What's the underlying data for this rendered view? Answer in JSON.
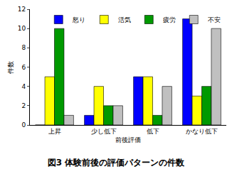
{
  "chart_data": {
    "type": "bar",
    "title": "図3 体験前後の評価パターンの件数",
    "x_label": "前後評価",
    "y_label": "件数",
    "categories": [
      "上昇",
      "少し低下",
      "低下",
      "かなり低下"
    ],
    "series": [
      {
        "name": "怒り",
        "color": "#0000FF",
        "values": [
          0,
          1,
          5,
          11
        ]
      },
      {
        "name": "活気",
        "color": "#FFFF00",
        "values": [
          5,
          4,
          5,
          3
        ]
      },
      {
        "name": "疲労",
        "color": "#009900",
        "values": [
          10,
          2,
          1,
          4
        ]
      },
      {
        "name": "不安",
        "color": "#C0C0C0",
        "values": [
          1,
          2,
          4,
          10
        ]
      }
    ],
    "ylim": [
      0,
      12
    ],
    "yticks": [
      0,
      2,
      4,
      6,
      8,
      10,
      12
    ],
    "grid": false,
    "legend": "top"
  }
}
